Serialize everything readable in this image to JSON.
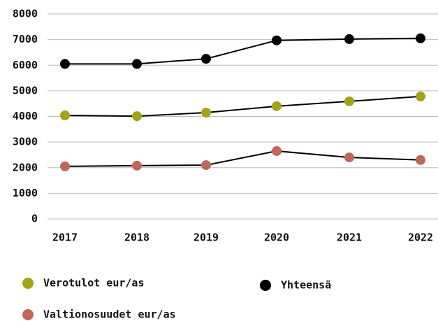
{
  "chart_data": {
    "type": "line",
    "categories": [
      "2017",
      "2018",
      "2019",
      "2020",
      "2021",
      "2022"
    ],
    "series": [
      {
        "name": "Verotulot eur/as",
        "color": "#a2a417",
        "values": [
          4040,
          4010,
          4150,
          4400,
          4590,
          4780
        ]
      },
      {
        "name": "Yhteensä",
        "color": "#000000",
        "values": [
          6050,
          6050,
          6250,
          6970,
          7020,
          7050
        ]
      },
      {
        "name": "Valtionosuudet eur/as",
        "color": "#c0675b",
        "values": [
          2050,
          2080,
          2100,
          2650,
          2400,
          2300
        ]
      }
    ],
    "line_color": "#000000",
    "ylim": [
      0,
      8000
    ],
    "yticks": [
      0,
      1000,
      2000,
      3000,
      4000,
      5000,
      6000,
      7000,
      8000
    ],
    "grid": true
  }
}
